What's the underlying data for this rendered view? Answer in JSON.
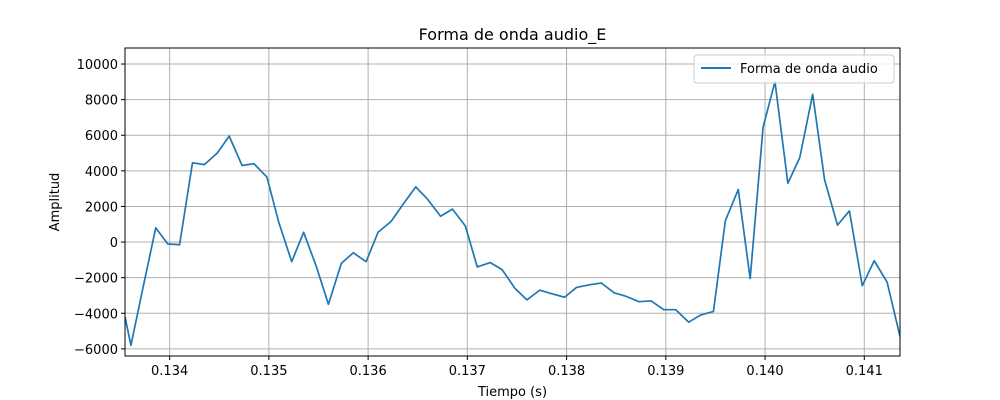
{
  "chart_data": {
    "type": "line",
    "title": "Forma de onda audio_E",
    "xlabel": "Tiempo (s)",
    "ylabel": "Amplitud",
    "xlim": [
      0.13355,
      0.14136
    ],
    "ylim": [
      -6400,
      10900
    ],
    "grid": true,
    "legend_position": "top-right",
    "x_ticks": [
      0.134,
      0.135,
      0.136,
      0.137,
      0.138,
      0.139,
      0.14,
      0.141
    ],
    "x_tick_labels": [
      "0.134",
      "0.135",
      "0.136",
      "0.137",
      "0.138",
      "0.139",
      "0.140",
      "0.141"
    ],
    "y_ticks": [
      -6000,
      -4000,
      -2000,
      0,
      2000,
      4000,
      6000,
      8000,
      10000
    ],
    "y_tick_labels": [
      "−6000",
      "−4000",
      "−2000",
      "0",
      "2000",
      "4000",
      "6000",
      "8000",
      "10000"
    ],
    "series": [
      {
        "name": "Forma de onda audio",
        "color": "#1f77b4",
        "x": [
          0.13355,
          0.13361,
          0.13373,
          0.13386,
          0.13398,
          0.1341,
          0.13423,
          0.13435,
          0.13448,
          0.1346,
          0.13473,
          0.13485,
          0.13498,
          0.1351,
          0.13523,
          0.13535,
          0.13548,
          0.1356,
          0.13573,
          0.13585,
          0.13598,
          0.1361,
          0.13623,
          0.13635,
          0.13648,
          0.1366,
          0.13673,
          0.13685,
          0.13698,
          0.1371,
          0.13723,
          0.13735,
          0.13748,
          0.1376,
          0.13773,
          0.13785,
          0.13798,
          0.1381,
          0.13823,
          0.13835,
          0.13848,
          0.1386,
          0.13873,
          0.13885,
          0.13898,
          0.1391,
          0.13923,
          0.13935,
          0.13948,
          0.1396,
          0.13973,
          0.13985,
          0.13998,
          0.1401,
          0.14023,
          0.14035,
          0.14048,
          0.1406,
          0.14073,
          0.14085,
          0.14098,
          0.1411,
          0.14123,
          0.14136
        ],
        "y": [
          -4200,
          -5800,
          -2600,
          800,
          -100,
          -150,
          4450,
          4350,
          5000,
          5950,
          4300,
          4400,
          3650,
          1100,
          -1100,
          550,
          -1400,
          -3500,
          -1200,
          -600,
          -1100,
          550,
          1150,
          2100,
          3100,
          2400,
          1450,
          1850,
          900,
          -1400,
          -1150,
          -1550,
          -2600,
          -3250,
          -2700,
          -2900,
          -3100,
          -2550,
          -2400,
          -2300,
          -2850,
          -3050,
          -3350,
          -3300,
          -3800,
          -3800,
          -4500,
          -4100,
          -3900,
          1200,
          2950,
          -2050,
          6450,
          9000,
          3300,
          4750,
          8300,
          3500,
          950,
          1750,
          -2450,
          -1050,
          -2250,
          -5300
        ]
      }
    ]
  }
}
